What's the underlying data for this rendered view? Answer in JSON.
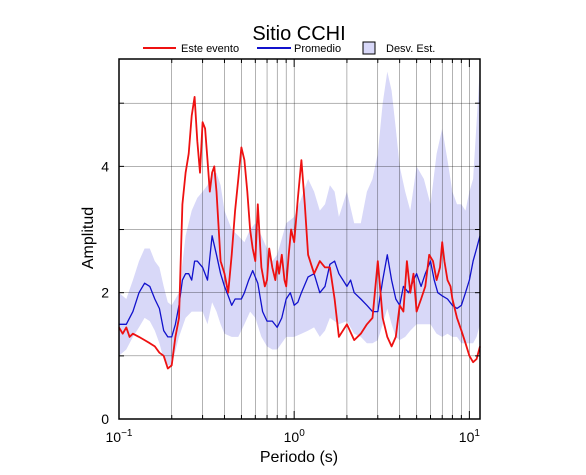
{
  "chart_data": {
    "type": "line",
    "title": "Sitio CCHI",
    "xlabel": "Periodo (s)",
    "ylabel": "Amplitud",
    "xscale": "log",
    "xlim": [
      0.1,
      11.5
    ],
    "ylim": [
      0,
      5.7
    ],
    "grid": true,
    "legend_placement": "top",
    "x_ticks": [
      {
        "value": 0.1,
        "base": "10",
        "exp": "−1"
      },
      {
        "value": 1,
        "base": "10",
        "exp": "0"
      },
      {
        "value": 10,
        "base": "10",
        "exp": "1"
      }
    ],
    "y_ticks": [
      {
        "value": 0,
        "label": "0"
      },
      {
        "value": 2,
        "label": "2"
      },
      {
        "value": 4,
        "label": "4"
      }
    ],
    "colors": {
      "este_evento": "#ee1111",
      "promedio": "#1111cc",
      "desv_fill": "#d8d8f8",
      "desv_edge": "#000000"
    },
    "series": [
      {
        "name": "Este evento",
        "x": [
          0.1,
          0.105,
          0.11,
          0.115,
          0.12,
          0.13,
          0.14,
          0.15,
          0.16,
          0.17,
          0.18,
          0.19,
          0.2,
          0.21,
          0.22,
          0.23,
          0.24,
          0.25,
          0.26,
          0.27,
          0.28,
          0.29,
          0.3,
          0.31,
          0.32,
          0.33,
          0.34,
          0.35,
          0.36,
          0.38,
          0.4,
          0.42,
          0.44,
          0.46,
          0.48,
          0.5,
          0.52,
          0.54,
          0.56,
          0.58,
          0.6,
          0.62,
          0.65,
          0.68,
          0.7,
          0.72,
          0.75,
          0.78,
          0.8,
          0.82,
          0.85,
          0.88,
          0.9,
          0.93,
          0.96,
          1.0,
          1.05,
          1.1,
          1.15,
          1.2,
          1.3,
          1.4,
          1.5,
          1.6,
          1.7,
          1.8,
          2.0,
          2.2,
          2.4,
          2.6,
          2.8,
          3.0,
          3.2,
          3.4,
          3.6,
          3.8,
          4.0,
          4.2,
          4.4,
          4.6,
          4.8,
          5.0,
          5.3,
          5.6,
          5.9,
          6.2,
          6.5,
          6.8,
          7.0,
          7.2,
          7.5,
          7.8,
          8.0,
          8.5,
          9.0,
          9.5,
          10.0,
          10.5,
          11.0,
          11.5
        ],
        "y": [
          1.45,
          1.35,
          1.45,
          1.3,
          1.35,
          1.3,
          1.25,
          1.2,
          1.15,
          1.05,
          1.0,
          0.8,
          0.85,
          1.3,
          1.6,
          3.4,
          3.9,
          4.2,
          4.8,
          5.1,
          4.4,
          3.9,
          4.7,
          4.6,
          4.1,
          3.6,
          3.9,
          4.0,
          3.6,
          2.5,
          2.3,
          2.0,
          2.6,
          3.3,
          3.8,
          4.3,
          4.1,
          3.6,
          3.0,
          2.7,
          2.5,
          3.4,
          2.4,
          2.1,
          2.2,
          2.7,
          2.4,
          2.2,
          2.5,
          2.3,
          2.6,
          2.2,
          2.1,
          2.6,
          3.0,
          2.8,
          3.5,
          4.1,
          3.4,
          2.6,
          2.3,
          2.5,
          2.4,
          2.4,
          1.9,
          1.3,
          1.5,
          1.25,
          1.35,
          1.5,
          1.6,
          2.5,
          1.6,
          1.3,
          1.15,
          1.3,
          1.8,
          1.7,
          2.5,
          2.0,
          2.3,
          1.7,
          1.9,
          2.1,
          2.6,
          2.5,
          2.2,
          2.4,
          2.8,
          2.5,
          2.2,
          2.1,
          1.9,
          1.6,
          1.4,
          1.2,
          1.0,
          0.9,
          0.95,
          1.15
        ]
      },
      {
        "name": "Promedio",
        "x": [
          0.1,
          0.11,
          0.12,
          0.13,
          0.14,
          0.15,
          0.16,
          0.17,
          0.18,
          0.19,
          0.2,
          0.21,
          0.22,
          0.23,
          0.24,
          0.25,
          0.26,
          0.27,
          0.28,
          0.3,
          0.32,
          0.34,
          0.36,
          0.38,
          0.4,
          0.42,
          0.44,
          0.46,
          0.48,
          0.5,
          0.52,
          0.55,
          0.58,
          0.62,
          0.66,
          0.7,
          0.75,
          0.8,
          0.85,
          0.9,
          0.95,
          1.0,
          1.05,
          1.1,
          1.2,
          1.3,
          1.4,
          1.5,
          1.6,
          1.7,
          1.8,
          1.9,
          2.0,
          2.1,
          2.2,
          2.4,
          2.6,
          2.8,
          3.0,
          3.2,
          3.4,
          3.6,
          3.8,
          4.0,
          4.2,
          4.5,
          4.8,
          5.0,
          5.3,
          5.6,
          6.0,
          6.3,
          6.6,
          7.0,
          7.5,
          8.0,
          8.5,
          9.0,
          9.5,
          10.0,
          10.5,
          11.0,
          11.5
        ],
        "y": [
          1.5,
          1.5,
          1.7,
          2.0,
          2.15,
          2.1,
          1.9,
          1.75,
          1.4,
          1.3,
          1.3,
          1.5,
          1.8,
          2.2,
          2.3,
          2.3,
          2.2,
          2.5,
          2.5,
          2.4,
          2.2,
          2.9,
          2.6,
          2.3,
          2.1,
          1.95,
          1.8,
          1.9,
          1.9,
          1.9,
          2.0,
          2.2,
          2.35,
          2.15,
          1.7,
          1.55,
          1.55,
          1.45,
          1.6,
          1.9,
          2.0,
          1.8,
          1.85,
          2.0,
          2.25,
          2.3,
          2.0,
          2.1,
          2.45,
          2.5,
          2.3,
          2.2,
          2.1,
          2.2,
          2.0,
          1.9,
          1.8,
          1.7,
          1.7,
          2.2,
          2.6,
          2.2,
          1.9,
          1.8,
          2.1,
          2.0,
          2.2,
          2.3,
          2.1,
          2.3,
          2.5,
          2.2,
          2.0,
          1.95,
          1.9,
          1.8,
          1.75,
          1.8,
          2.0,
          2.2,
          2.5,
          2.7,
          2.9
        ]
      },
      {
        "name": "Desv. Est.",
        "x": [
          0.1,
          0.11,
          0.12,
          0.13,
          0.14,
          0.15,
          0.16,
          0.17,
          0.18,
          0.19,
          0.2,
          0.22,
          0.24,
          0.26,
          0.28,
          0.3,
          0.32,
          0.34,
          0.36,
          0.38,
          0.4,
          0.44,
          0.48,
          0.52,
          0.56,
          0.6,
          0.65,
          0.7,
          0.75,
          0.8,
          0.9,
          1.0,
          1.1,
          1.2,
          1.3,
          1.4,
          1.5,
          1.6,
          1.7,
          1.8,
          2.0,
          2.2,
          2.4,
          2.6,
          2.8,
          3.0,
          3.2,
          3.4,
          3.6,
          3.8,
          4.0,
          4.3,
          4.6,
          5.0,
          5.5,
          6.0,
          6.5,
          7.0,
          7.5,
          8.0,
          8.5,
          9.0,
          9.5,
          10.0,
          10.5,
          11.0,
          11.5
        ],
        "upper": [
          2.0,
          1.9,
          2.2,
          2.5,
          2.7,
          2.7,
          2.5,
          2.4,
          2.1,
          1.85,
          1.8,
          2.0,
          2.9,
          3.3,
          3.5,
          3.6,
          3.7,
          3.9,
          3.9,
          3.7,
          3.3,
          3.0,
          2.9,
          2.8,
          3.0,
          3.1,
          2.9,
          2.7,
          2.5,
          2.6,
          3.1,
          3.2,
          3.5,
          3.8,
          3.6,
          3.3,
          3.4,
          3.7,
          3.6,
          3.2,
          3.6,
          3.1,
          3.1,
          3.6,
          3.8,
          4.2,
          5.0,
          5.5,
          5.2,
          4.6,
          4.0,
          3.6,
          3.3,
          4.0,
          3.8,
          3.4,
          4.2,
          4.6,
          4.1,
          3.6,
          3.4,
          3.4,
          3.3,
          3.6,
          3.8,
          4.7,
          5.6
        ],
        "lower": [
          1.0,
          1.1,
          1.3,
          1.45,
          1.6,
          1.55,
          1.4,
          1.2,
          0.95,
          0.85,
          0.85,
          1.3,
          1.6,
          1.7,
          1.7,
          1.7,
          1.5,
          1.85,
          1.7,
          1.5,
          1.35,
          1.3,
          1.3,
          1.5,
          1.7,
          1.6,
          1.3,
          1.15,
          1.1,
          1.1,
          1.3,
          1.3,
          1.35,
          1.4,
          1.45,
          1.3,
          1.4,
          1.6,
          1.55,
          1.5,
          1.55,
          1.35,
          1.3,
          1.2,
          1.2,
          1.25,
          1.5,
          1.75,
          1.5,
          1.3,
          1.25,
          1.3,
          1.4,
          1.5,
          1.5,
          1.5,
          1.35,
          1.3,
          1.35,
          1.3,
          1.3,
          1.2,
          1.2,
          1.2,
          1.2,
          1.3,
          1.5
        ]
      }
    ]
  }
}
